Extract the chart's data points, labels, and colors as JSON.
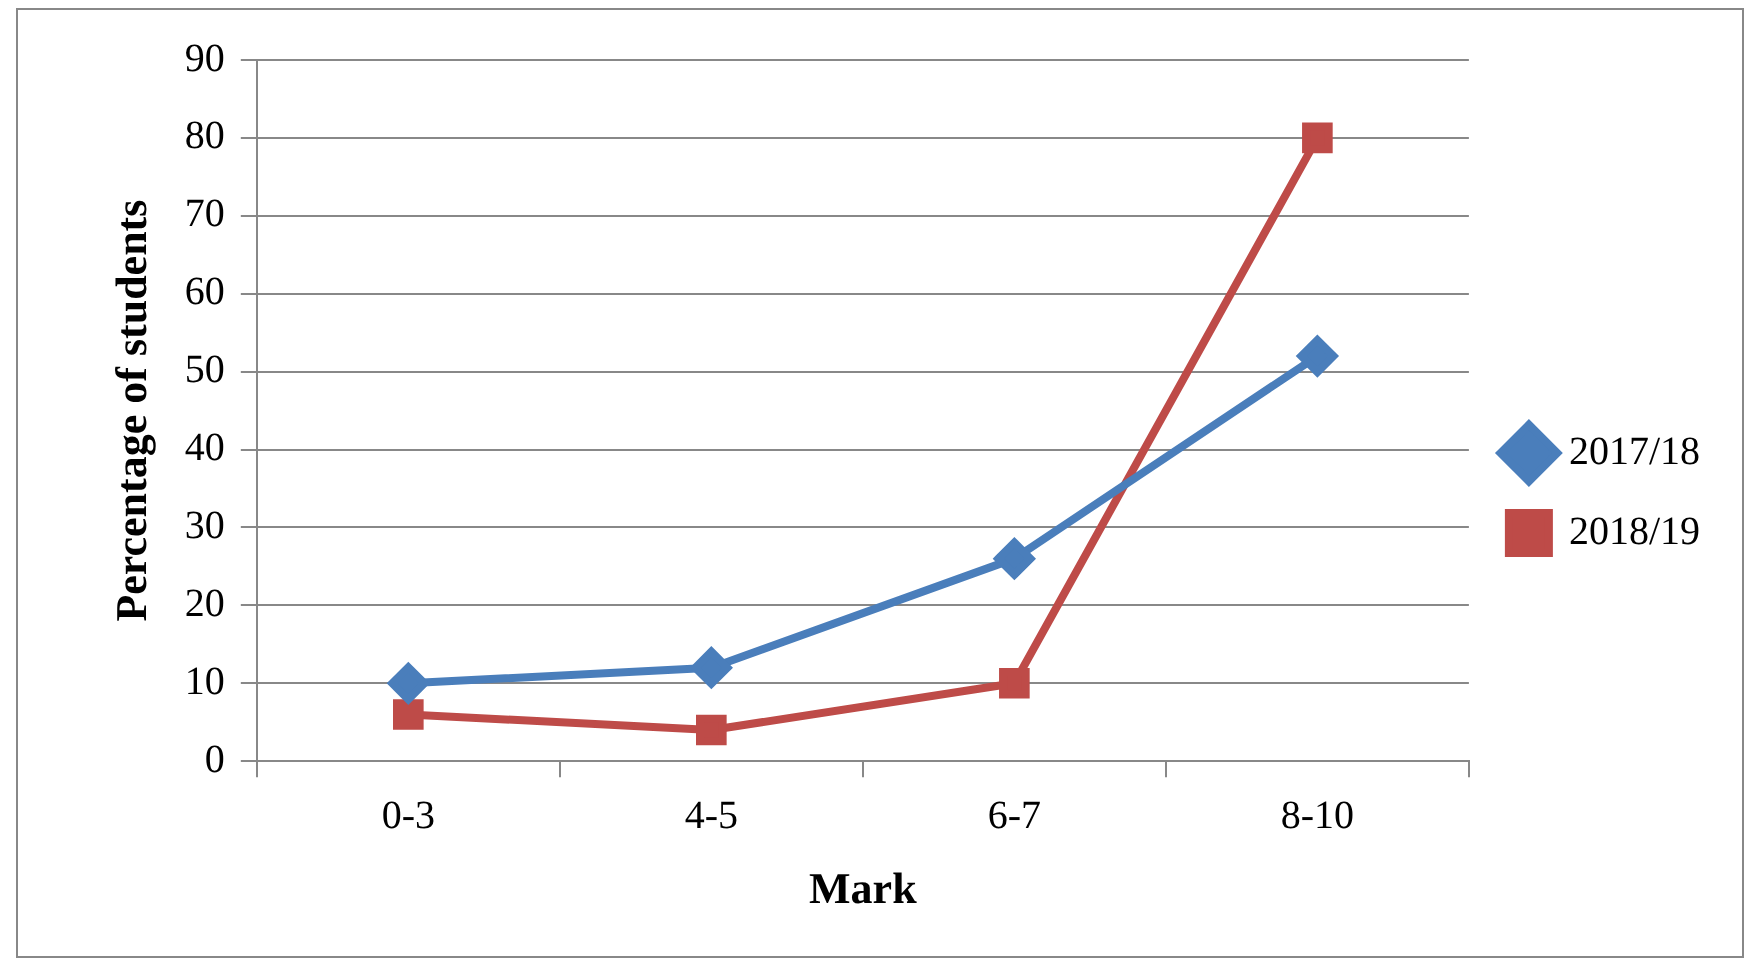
{
  "chart_data": {
    "type": "line",
    "xlabel": "Mark",
    "ylabel": "Percentage of students",
    "categories": [
      "0-3",
      "4-5",
      "6-7",
      "8-10"
    ],
    "series": [
      {
        "name": "2017/18",
        "color": "#4a7ebb",
        "values": [
          10,
          12,
          26,
          52
        ],
        "marker": "diamond"
      },
      {
        "name": "2018/19",
        "color": "#be4b48",
        "values": [
          6,
          4,
          10,
          80
        ],
        "marker": "square"
      }
    ],
    "ylim": [
      0,
      90
    ],
    "yticks": [
      0,
      10,
      20,
      30,
      40,
      50,
      60,
      70,
      80,
      90
    ],
    "grid": "y",
    "legend": "right",
    "line_style": "solid"
  }
}
